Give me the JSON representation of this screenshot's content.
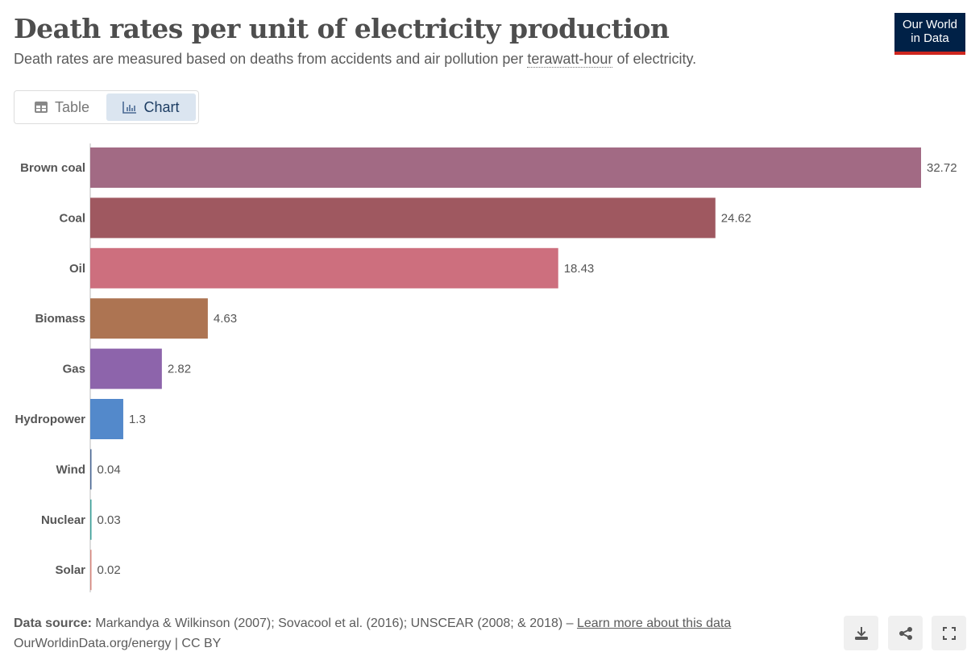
{
  "header": {
    "title": "Death rates per unit of electricity production",
    "subtitle_pre": "Death rates are measured based on deaths from accidents and air pollution per ",
    "subtitle_link": "terawatt-hour",
    "subtitle_post": " of electricity.",
    "logo": "Our World in Data"
  },
  "tabs": [
    {
      "label": "Table",
      "icon": "table-icon"
    },
    {
      "label": "Chart",
      "icon": "chart-icon",
      "active": true
    }
  ],
  "chart_data": {
    "type": "bar",
    "orientation": "horizontal",
    "categories": [
      "Brown coal",
      "Coal",
      "Oil",
      "Biomass",
      "Gas",
      "Hydropower",
      "Wind",
      "Nuclear",
      "Solar"
    ],
    "values": [
      32.72,
      24.62,
      18.43,
      4.63,
      2.82,
      1.3,
      0.04,
      0.03,
      0.02
    ],
    "labels": [
      "32.72",
      "24.62",
      "18.43",
      "4.63",
      "2.82",
      "1.3",
      "0.04",
      "0.03",
      "0.02"
    ],
    "colors": [
      "#a26a84",
      "#9f5860",
      "#cd6f7e",
      "#ad7452",
      "#8d64ab",
      "#5389cb",
      "#4a6896",
      "#3aa19a",
      "#d8877e"
    ],
    "xlim": [
      0,
      32.72
    ]
  },
  "footer": {
    "source_label": "Data source:",
    "source_text": " Markandya & Wilkinson (2007); Sovacool et al. (2016); UNSCEAR (2008; & 2018) – ",
    "learn_more": "Learn more about this data",
    "credit": "OurWorldinData.org/energy | CC BY"
  },
  "buttons": [
    "download-icon",
    "share-icon",
    "fullscreen-icon"
  ]
}
